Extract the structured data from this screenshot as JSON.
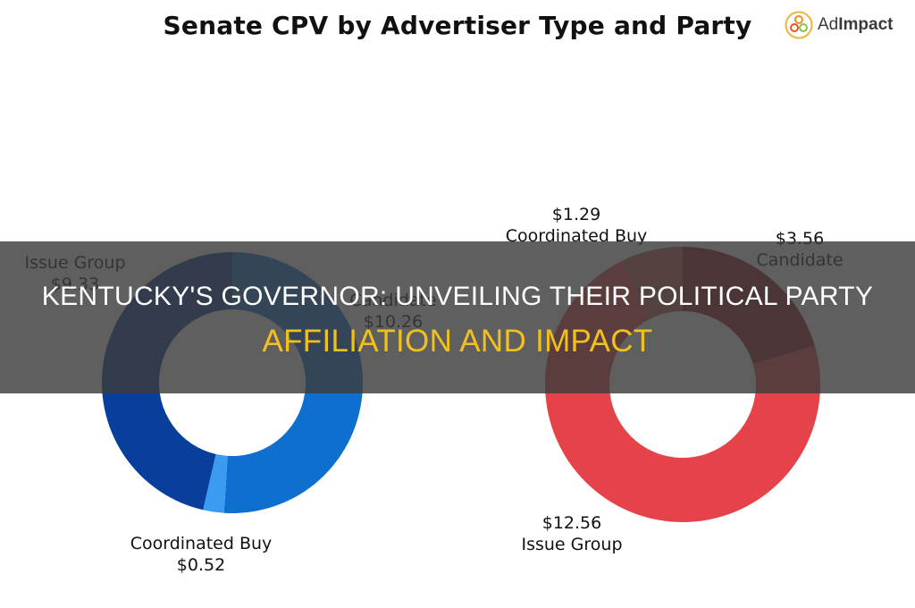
{
  "chart_data": {
    "type": "pie",
    "title": "Senate CPV by Advertiser Type and Party",
    "brand": "AdImpact",
    "charts": [
      {
        "name": "Democrat",
        "style": "donut",
        "categories": [
          "Candidate",
          "Coordinated Buy",
          "Issue Group"
        ],
        "values": [
          10.26,
          0.52,
          9.33
        ],
        "labels": [
          "$10.26",
          "$0.52",
          "$9.33"
        ],
        "colors": [
          "#0f6fce",
          "#3a9bf0",
          "#083f9c"
        ]
      },
      {
        "name": "Republican",
        "style": "donut",
        "categories": [
          "Candidate",
          "Issue Group",
          "Coordinated Buy"
        ],
        "values": [
          3.56,
          12.56,
          1.29
        ],
        "labels": [
          "$3.56",
          "$12.56",
          "$1.29"
        ],
        "colors": [
          "#8f1b22",
          "#e5424a",
          "#b85a4d"
        ]
      }
    ]
  },
  "header": {
    "title": "Senate CPV by Advertiser Type and Party",
    "logo": {
      "icon": "adimpact-logo-icon",
      "text_light": "Ad",
      "text_bold": "Impact"
    }
  },
  "left_labels": {
    "issue_group": {
      "name": "Issue Group",
      "value": "$9.33"
    },
    "candidate": {
      "name": "Candidate",
      "value": "$10.26"
    },
    "coordinated_buy": {
      "name": "Coordinated Buy",
      "value": "$0.52"
    }
  },
  "right_labels": {
    "coordinated_buy": {
      "name": "Coordinated Buy",
      "value": "$1.29"
    },
    "candidate": {
      "name": "Candidate",
      "value": "$3.56"
    },
    "issue_group": {
      "name": "Issue Group",
      "value": "$12.56"
    }
  },
  "overlay": {
    "line1": "KENTUCKY'S GOVERNOR: UNVEILING THEIR POLITICAL PARTY",
    "line2": "AFFILIATION AND IMPACT",
    "line1_color": "#ffffff",
    "line2_color": "#f2c01c"
  }
}
